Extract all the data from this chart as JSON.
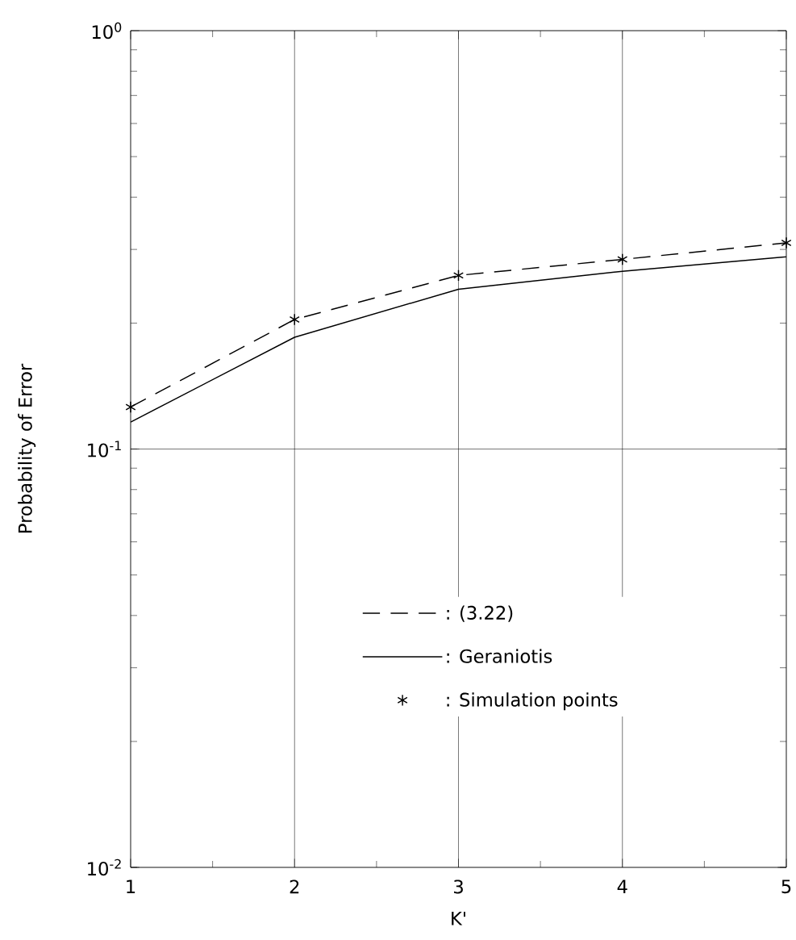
{
  "chart_data": {
    "type": "line",
    "xlabel": "K'",
    "ylabel": "Probability of Error",
    "x": [
      1,
      2,
      3,
      4,
      5
    ],
    "series": [
      {
        "name": ": (3.22)",
        "color": "#000000",
        "line_style": "dashed",
        "marker": "none",
        "values": [
          0.126,
          0.204,
          0.26,
          0.284,
          0.311
        ]
      },
      {
        "name": ": Geraniotis",
        "color": "#000000",
        "line_style": "solid",
        "marker": "none",
        "values": [
          0.116,
          0.185,
          0.241,
          0.266,
          0.288
        ]
      },
      {
        "name": ": Simulation points",
        "type": "scatter",
        "color": "#000000",
        "marker": "cross",
        "values": [
          0.126,
          0.204,
          0.26,
          0.284,
          0.311
        ]
      }
    ],
    "log": "y",
    "xlim": [
      1,
      5
    ],
    "ylim": [
      0.01,
      1
    ],
    "xticks": [
      1,
      2,
      3,
      4,
      5
    ],
    "yticks": [
      {
        "value": 0.01,
        "label": "10$^{-2}$"
      },
      {
        "value": 0.1,
        "label": "10$^{-1}$"
      },
      {
        "value": 1,
        "label": "10$^{0}$"
      }
    ],
    "grid": true,
    "legend": "bottom"
  }
}
